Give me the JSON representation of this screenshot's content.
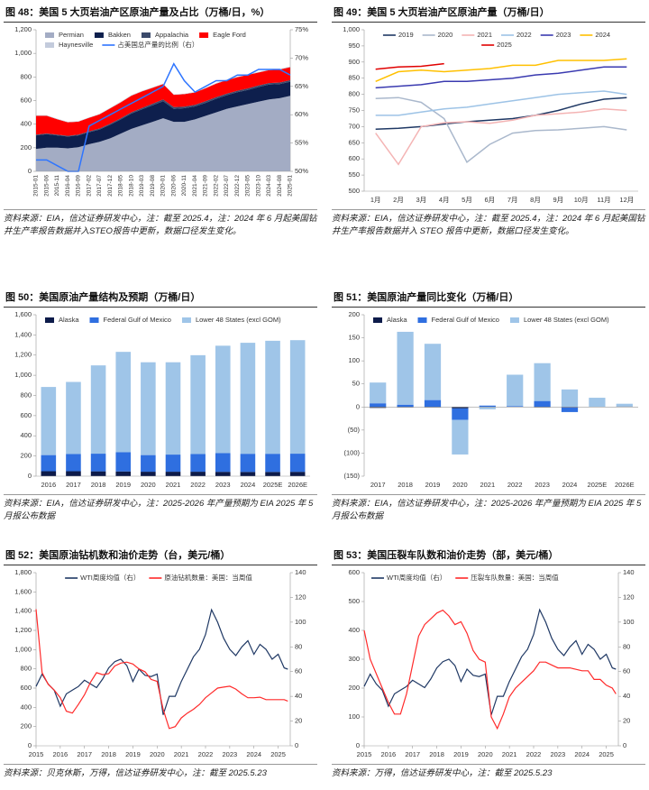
{
  "chart_data": [
    {
      "type": "area",
      "title": "图 48：美国 5 大页岩油产区原油产量及占比（万桶/日，%）",
      "source": "资料来源：EIA，信达证券研发中心，注：截至 2025.4，注：2024 年 6 月起美国钻井生产率报告数据并入STEO报告中更新，数据口径发生变化。",
      "categories": [
        "2015-01",
        "2015-06",
        "2015-11",
        "2016-04",
        "2016-09",
        "2017-02",
        "2017-07",
        "2017-12",
        "2018-05",
        "2018-10",
        "2019-03",
        "2019-08",
        "2020-01",
        "2020-06",
        "2020-11",
        "2021-04",
        "2021-09",
        "2022-02",
        "2022-07",
        "2022-12",
        "2023-05",
        "2023-10",
        "2024-03",
        "2024-08",
        "2025-01"
      ],
      "ylim": [
        0,
        1200
      ],
      "yticks": [
        0,
        200,
        400,
        600,
        800,
        {
          "value": 1000,
          "label": "1,000"
        },
        {
          "value": 1200,
          "label": "1,200"
        }
      ],
      "y2lim": [
        50,
        75
      ],
      "y2ticks": [
        {
          "value": 50,
          "label": "50%"
        },
        {
          "value": 55,
          "label": "55%"
        },
        {
          "value": 60,
          "label": "60%"
        },
        {
          "value": 65,
          "label": "65%"
        },
        {
          "value": 70,
          "label": "70%"
        },
        {
          "value": 75,
          "label": "75%"
        }
      ],
      "legend": "top-left",
      "series": [
        {
          "name": "Permian",
          "color": "#a3acc4",
          "values": [
            190,
            200,
            200,
            195,
            205,
            230,
            250,
            280,
            320,
            360,
            390,
            420,
            450,
            420,
            420,
            440,
            470,
            500,
            530,
            550,
            570,
            590,
            610,
            620,
            640
          ]
        },
        {
          "name": "Bakken",
          "color": "#0e1f4d",
          "values": [
            115,
            115,
            105,
            100,
            100,
            102,
            105,
            115,
            120,
            130,
            135,
            140,
            145,
            110,
            115,
            110,
            110,
            115,
            115,
            120,
            120,
            125,
            125,
            120,
            120
          ]
        },
        {
          "name": "Appalachia",
          "color": "#3b4a6b",
          "values": [
            6,
            6,
            6,
            6,
            6,
            7,
            8,
            9,
            10,
            11,
            12,
            13,
            14,
            14,
            14,
            14,
            14,
            13,
            13,
            13,
            13,
            13,
            13,
            13,
            13
          ]
        },
        {
          "name": "Eagle Ford",
          "color": "#ff0000",
          "values": [
            160,
            150,
            130,
            115,
            110,
            115,
            120,
            130,
            135,
            140,
            140,
            135,
            130,
            105,
            105,
            105,
            110,
            115,
            115,
            115,
            115,
            110,
            110,
            110,
            110
          ]
        },
        {
          "name": "Haynesville",
          "color": "#c3cbdc",
          "values": [
            5,
            5,
            5,
            4,
            4,
            4,
            4,
            5,
            5,
            5,
            5,
            5,
            5,
            4,
            4,
            4,
            4,
            5,
            5,
            5,
            5,
            5,
            5,
            5,
            5
          ]
        },
        {
          "name": "占美国总产量的比例（右）",
          "color": "#2e75ff",
          "axis": "y2",
          "values": [
            52,
            52,
            51,
            50,
            50,
            58,
            59,
            60,
            61,
            62,
            63,
            64,
            65,
            69,
            66,
            64,
            65,
            66,
            66,
            67,
            67,
            68,
            68,
            68,
            67
          ]
        }
      ]
    },
    {
      "type": "line",
      "title": "图 49：美国 5 大页岩油产区原油产量（万桶/日）",
      "source": "资料来源：EIA，信达证券研发中心，注：截至 2025.4，注：2024 年 6 月起美国钻井生产率报告数据并入 STEO 报告中更新，数据口径发生变化。",
      "categories": [
        "1月",
        "2月",
        "3月",
        "4月",
        "5月",
        "6月",
        "7月",
        "8月",
        "9月",
        "10月",
        "11月",
        "12月"
      ],
      "ylim": [
        500,
        1000
      ],
      "yticks": [
        500,
        550,
        600,
        650,
        700,
        750,
        800,
        850,
        900,
        950,
        {
          "value": 1000,
          "label": "1,000"
        }
      ],
      "legend": "top",
      "series": [
        {
          "name": "2019",
          "color": "#1f3864",
          "values": [
            692,
            695,
            700,
            708,
            715,
            720,
            725,
            735,
            750,
            770,
            785,
            790
          ]
        },
        {
          "name": "2020",
          "color": "#aab8cc",
          "values": [
            787,
            790,
            775,
            725,
            590,
            645,
            680,
            688,
            690,
            695,
            700,
            690
          ]
        },
        {
          "name": "2021",
          "color": "#f4b4b4",
          "values": [
            680,
            583,
            700,
            712,
            715,
            710,
            720,
            735,
            740,
            745,
            755,
            750
          ]
        },
        {
          "name": "2022",
          "color": "#9dc3e6",
          "values": [
            735,
            735,
            745,
            755,
            760,
            770,
            780,
            790,
            800,
            805,
            810,
            800
          ]
        },
        {
          "name": "2023",
          "color": "#3a3ab0",
          "values": [
            820,
            825,
            830,
            840,
            840,
            845,
            850,
            860,
            865,
            875,
            885,
            885
          ]
        },
        {
          "name": "2024",
          "color": "#ffc000",
          "values": [
            840,
            870,
            875,
            870,
            875,
            880,
            890,
            890,
            905,
            905,
            905,
            910
          ]
        },
        {
          "name": "2025",
          "color": "#e00000",
          "values": [
            878,
            885,
            887,
            895,
            null,
            null,
            null,
            null,
            null,
            null,
            null,
            null
          ]
        }
      ]
    },
    {
      "type": "bar",
      "title": "图 50：美国原油产量结构及预期（万桶/日）",
      "source": "资料来源：EIA，信达证券研发中心，注：2025-2026 年产量预期为 EIA 2025 年 5 月报公布数据",
      "categories": [
        "2016",
        "2017",
        "2018",
        "2019",
        "2020",
        "2021",
        "2022",
        "2023",
        "2024",
        "2025E",
        "2026E"
      ],
      "ylim": [
        0,
        1600
      ],
      "yticks": [
        0,
        200,
        400,
        600,
        800,
        {
          "value": 1000,
          "label": "1,000"
        },
        {
          "value": 1200,
          "label": "1,200"
        },
        {
          "value": 1400,
          "label": "1,400"
        },
        {
          "value": 1600,
          "label": "1,600"
        }
      ],
      "legend": "top-left",
      "series": [
        {
          "name": "Alaska",
          "color": "#0d1b4a",
          "values": [
            49,
            49,
            48,
            47,
            44,
            44,
            44,
            43,
            42,
            42,
            43
          ]
        },
        {
          "name": "Federal Gulf of Mexico",
          "color": "#2f6fe0",
          "values": [
            160,
            170,
            175,
            190,
            165,
            170,
            175,
            185,
            180,
            180,
            180
          ]
        },
        {
          "name": "Lower 48 States (excl GOM)",
          "color": "#9fc5e8",
          "values": [
            675,
            715,
            875,
            995,
            920,
            915,
            980,
            1065,
            1100,
            1120,
            1125
          ]
        }
      ]
    },
    {
      "type": "bar",
      "title": "图 51：美国原油产量同比变化（万桶/日）",
      "source": "资料来源：EIA，信达证券研发中心，注：2025-2026 年产量预期为 EIA 2025 年 5 月报公布数据",
      "categories": [
        "2017",
        "2018",
        "2019",
        "2020",
        "2021",
        "2022",
        "2023",
        "2024",
        "2025E",
        "2026E"
      ],
      "ylim": [
        -150,
        200
      ],
      "yticks": [
        {
          "value": -150,
          "label": "(150)"
        },
        {
          "value": -100,
          "label": "(100)"
        },
        {
          "value": -50,
          "label": "(50)"
        },
        0,
        50,
        100,
        150,
        200
      ],
      "legend": "top-left",
      "series": [
        {
          "name": "Alaska",
          "color": "#0d1b4a",
          "values": [
            -2,
            -1,
            -1,
            -3,
            0,
            0,
            -1,
            -1,
            0,
            1
          ]
        },
        {
          "name": "Federal Gulf of Mexico",
          "color": "#2f6fe0",
          "values": [
            8,
            5,
            15,
            -25,
            3,
            2,
            13,
            -10,
            0,
            0
          ]
        },
        {
          "name": "Lower 48 States (excl GOM)",
          "color": "#9fc5e8",
          "values": [
            45,
            158,
            122,
            -75,
            -5,
            68,
            82,
            38,
            20,
            6
          ]
        }
      ]
    },
    {
      "type": "line",
      "title": "图 52：美国原油钻机数和油价走势（台，美元/桶）",
      "source": "资料来源：贝克休斯，万得，信达证券研发中心，注：截至 2025.5.23",
      "x": [
        2015,
        2015.25,
        2015.5,
        2015.75,
        2016,
        2016.25,
        2016.5,
        2016.75,
        2017,
        2017.25,
        2017.5,
        2017.75,
        2018,
        2018.25,
        2018.5,
        2018.75,
        2019,
        2019.25,
        2019.5,
        2019.75,
        2020,
        2020.25,
        2020.5,
        2020.75,
        2021,
        2021.25,
        2021.5,
        2021.75,
        2022,
        2022.25,
        2022.5,
        2022.75,
        2023,
        2023.25,
        2023.5,
        2023.75,
        2024,
        2024.25,
        2024.5,
        2024.75,
        2025,
        2025.25,
        2025.4
      ],
      "xlim": [
        2015,
        2025.5
      ],
      "xticks": [
        2015,
        2016,
        2017,
        2018,
        2019,
        2020,
        2021,
        2022,
        2023,
        2024,
        2025
      ],
      "ylim": [
        0,
        1800
      ],
      "yticks": [
        0,
        200,
        400,
        600,
        800,
        {
          "value": 1000,
          "label": "1,000"
        },
        {
          "value": 1200,
          "label": "1,200"
        },
        {
          "value": 1400,
          "label": "1,400"
        },
        {
          "value": 1600,
          "label": "1,600"
        },
        {
          "value": 1800,
          "label": "1,800"
        }
      ],
      "y2lim": [
        0,
        140
      ],
      "y2ticks": [
        0,
        20,
        40,
        60,
        80,
        100,
        120,
        140
      ],
      "legend": "top",
      "series": [
        {
          "name": "WTI周度均值（右）",
          "color": "#1f3864",
          "axis": "y2",
          "values": [
            48,
            58,
            50,
            45,
            32,
            42,
            45,
            48,
            53,
            50,
            47,
            54,
            63,
            68,
            70,
            65,
            52,
            62,
            57,
            56,
            58,
            25,
            40,
            40,
            52,
            62,
            72,
            78,
            90,
            110,
            100,
            87,
            78,
            73,
            80,
            85,
            74,
            82,
            78,
            70,
            74,
            63,
            62
          ]
        },
        {
          "name": "原油钻机数量：美国：当周值",
          "color": "#ff2a2a",
          "values": [
            1420,
            760,
            640,
            580,
            500,
            360,
            340,
            430,
            530,
            660,
            760,
            740,
            750,
            830,
            860,
            870,
            850,
            800,
            770,
            690,
            670,
            380,
            180,
            200,
            290,
            340,
            380,
            430,
            500,
            550,
            600,
            610,
            620,
            590,
            540,
            500,
            500,
            505,
            480,
            480,
            480,
            480,
            465
          ]
        }
      ]
    },
    {
      "type": "line",
      "title": "图 53：美国压裂车队数和油价走势（部，美元/桶）",
      "source": "资料来源：万得，信达证券研发中心，注：截至 2025.5.23",
      "x": [
        2015,
        2015.25,
        2015.5,
        2015.75,
        2016,
        2016.25,
        2016.5,
        2016.75,
        2017,
        2017.25,
        2017.5,
        2017.75,
        2018,
        2018.25,
        2018.5,
        2018.75,
        2019,
        2019.25,
        2019.5,
        2019.75,
        2020,
        2020.25,
        2020.5,
        2020.75,
        2021,
        2021.25,
        2021.5,
        2021.75,
        2022,
        2022.25,
        2022.5,
        2022.75,
        2023,
        2023.25,
        2023.5,
        2023.75,
        2024,
        2024.25,
        2024.5,
        2024.75,
        2025,
        2025.25,
        2025.4
      ],
      "xlim": [
        2015,
        2025.5
      ],
      "xticks": [
        2015,
        2016,
        2017,
        2018,
        2019,
        2020,
        2021,
        2022,
        2023,
        2024,
        2025
      ],
      "ylim": [
        0,
        600
      ],
      "yticks": [
        0,
        100,
        200,
        300,
        400,
        500,
        600
      ],
      "y2lim": [
        0,
        140
      ],
      "y2ticks": [
        0,
        20,
        40,
        60,
        80,
        100,
        120,
        140
      ],
      "legend": "top-left",
      "series": [
        {
          "name": "WTI周度均值（右）",
          "color": "#1f3864",
          "axis": "y2",
          "values": [
            48,
            58,
            50,
            45,
            32,
            42,
            45,
            48,
            53,
            50,
            47,
            54,
            63,
            68,
            70,
            65,
            52,
            62,
            57,
            56,
            58,
            25,
            40,
            40,
            52,
            62,
            72,
            78,
            90,
            110,
            100,
            87,
            78,
            73,
            80,
            85,
            74,
            82,
            78,
            70,
            74,
            63,
            62
          ]
        },
        {
          "name": "压裂车队数量：美国：当周值",
          "color": "#ff2a2a",
          "values": [
            400,
            300,
            250,
            200,
            150,
            110,
            110,
            180,
            280,
            380,
            420,
            440,
            460,
            470,
            450,
            420,
            430,
            390,
            330,
            300,
            290,
            100,
            60,
            110,
            170,
            200,
            220,
            240,
            260,
            290,
            290,
            280,
            270,
            270,
            270,
            265,
            260,
            260,
            230,
            230,
            210,
            200,
            180
          ]
        }
      ]
    }
  ]
}
